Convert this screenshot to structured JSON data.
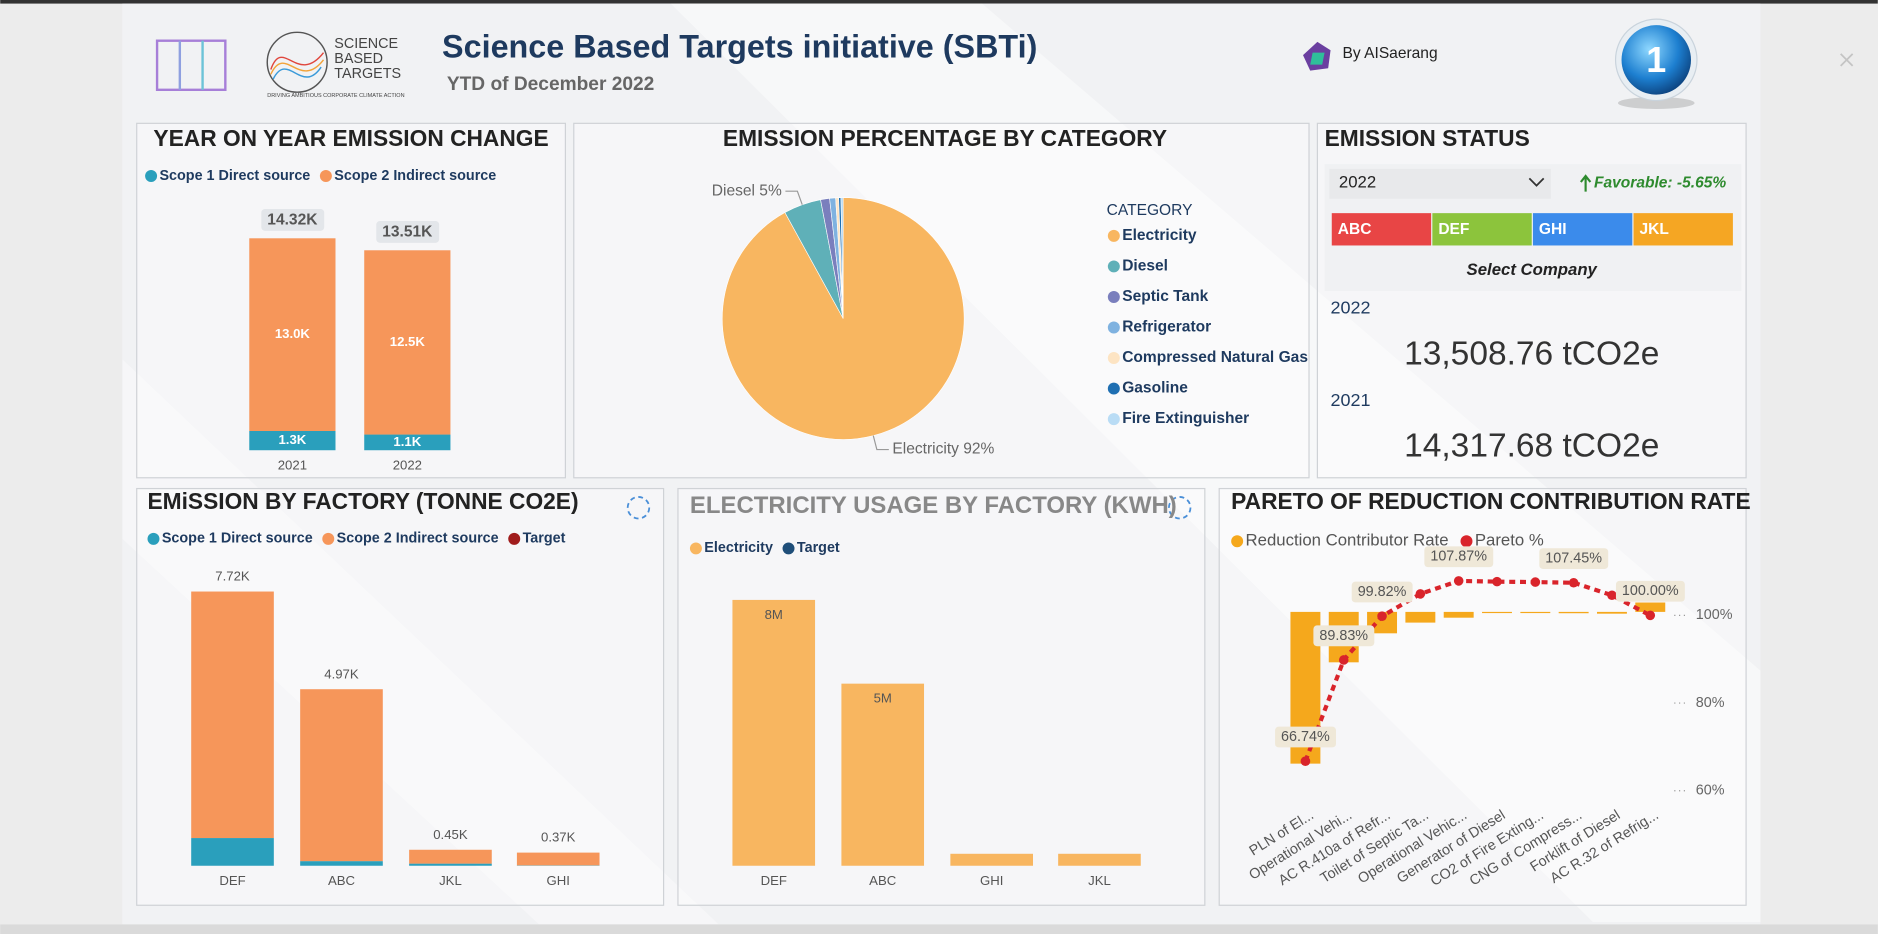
{
  "header": {
    "title": "Science Based Targets initiative (SBTi)",
    "subtitle": "YTD of December 2022",
    "author": "By AISaerang",
    "logo_lines": [
      "SCIENCE",
      "BASED",
      "TARGETS"
    ],
    "logo_tagline": "DRIVING AMBITIOUS CORPORATE CLIMATE ACTION",
    "badge": "1"
  },
  "emission_status": {
    "title": "EMISSION STATUS",
    "year_selected": "2022",
    "status": "Favorable: -5.65%",
    "companies": [
      {
        "label": "ABC",
        "color": "#e84545"
      },
      {
        "label": "DEF",
        "color": "#8cc43c"
      },
      {
        "label": "GHI",
        "color": "#3b8beb"
      },
      {
        "label": "JKL",
        "color": "#f5a623"
      }
    ],
    "company_prompt": "Select Company",
    "rows": [
      {
        "year": "2022",
        "value": "13,508.76 tCO2e"
      },
      {
        "year": "2021",
        "value": "14,317.68 tCO2e"
      }
    ]
  },
  "chart_data": [
    {
      "type": "stacked_bar",
      "title": "YEAR ON YEAR EMISSION CHANGE",
      "categories": [
        "2021",
        "2022"
      ],
      "series": [
        {
          "name": "Scope 1 Direct source",
          "color": "#2a9fbc",
          "values": [
            1300,
            1060
          ],
          "value_labels": [
            "1.3K",
            "1.1K"
          ]
        },
        {
          "name": "Scope 2 Indirect source",
          "color": "#f6965a",
          "values": [
            13020,
            12450
          ],
          "value_labels": [
            "13.0K",
            "12.5K"
          ]
        }
      ],
      "totals": [
        14320,
        13510
      ],
      "total_labels": [
        "14.32K",
        "13.51K"
      ]
    },
    {
      "type": "pie",
      "title": "EMISSION PERCENTAGE BY CATEGORY",
      "legend_title": "CATEGORY",
      "categories": [
        "Electricity",
        "Diesel",
        "Septic Tank",
        "Refrigerator",
        "Compressed Natural Gas",
        "Gasoline",
        "Fire Extinguisher"
      ],
      "values": [
        92,
        5,
        1.2,
        0.8,
        0.4,
        0.3,
        0.3
      ],
      "colors": [
        "#f8b660",
        "#5fb0b8",
        "#7a7fbd",
        "#7fb2e0",
        "#fde4c3",
        "#1f6fb2",
        "#b9dcf5"
      ],
      "value_labels": [
        "Electricity 92%",
        "Diesel 5%",
        null,
        null,
        null,
        null,
        null
      ]
    },
    {
      "type": "stacked_bar",
      "title": "EMiSSION BY FACTORY (TONNE CO2E)",
      "categories": [
        "DEF",
        "ABC",
        "JKL",
        "GHI"
      ],
      "series": [
        {
          "name": "Scope 1 Direct source",
          "color": "#2a9fbc",
          "values": [
            780,
            130,
            60,
            10
          ]
        },
        {
          "name": "Scope 2 Indirect source",
          "color": "#f6965a",
          "values": [
            6940,
            4840,
            390,
            360
          ]
        },
        {
          "name": "Target",
          "color": "#a01c1c",
          "values": [
            null,
            null,
            null,
            null
          ]
        }
      ],
      "totals": [
        7720,
        4970,
        450,
        370
      ],
      "total_labels": [
        "7.72K",
        "4.97K",
        "0.45K",
        "0.37K"
      ]
    },
    {
      "type": "bar",
      "title": "ELECTRICITY USAGE BY FACTORY (KWH)",
      "categories": [
        "DEF",
        "ABC",
        "GHI",
        "JKL"
      ],
      "series": [
        {
          "name": "Electricity",
          "color": "#f8b660",
          "values": [
            8000000,
            5480000,
            360000,
            360000
          ],
          "value_labels": [
            "8M",
            "5M",
            null,
            null
          ]
        },
        {
          "name": "Target",
          "color": "#1f4e79",
          "values": [
            null,
            null,
            null,
            null
          ]
        }
      ]
    },
    {
      "type": "pareto",
      "title": "PARETO OF REDUCTION CONTRIBUTION RATE",
      "categories": [
        "PLN of El...",
        "Operational Vehi...",
        "AC R.410a of Refr...",
        "Toilet of Septic Ta...",
        "Operational Vehic...",
        "Generator of Diesel",
        "CO2 of Fire Exting...",
        "CNG of Compress...",
        "Forklift of Diesel",
        "AC R.32 of Refrig..."
      ],
      "ylim": [
        -44,
        11
      ],
      "y2lim": [
        56,
        112
      ],
      "y2ticks": [
        {
          "value": 60,
          "label": "60%"
        },
        {
          "value": 80,
          "label": "80%"
        },
        {
          "value": 100,
          "label": "100%"
        }
      ],
      "series": [
        {
          "name": "Reduction Contributor Rate",
          "color": "#f5a81c",
          "values": [
            -34,
            -11.3,
            -4.8,
            -2.4,
            -1.3,
            -0.2,
            -0.2,
            -0.3,
            -0.4,
            2.1
          ]
        },
        {
          "name": "Pareto %",
          "color": "#d9242b",
          "axis": "y2",
          "values": [
            66.74,
            89.83,
            99.82,
            104.9,
            107.87,
            107.7,
            107.6,
            107.45,
            104.6,
            100.0
          ],
          "value_labels": [
            "66.74%",
            "89.83%",
            "99.82%",
            null,
            "107.87%",
            null,
            null,
            "107.45%",
            null,
            "100.00%"
          ]
        }
      ]
    }
  ]
}
